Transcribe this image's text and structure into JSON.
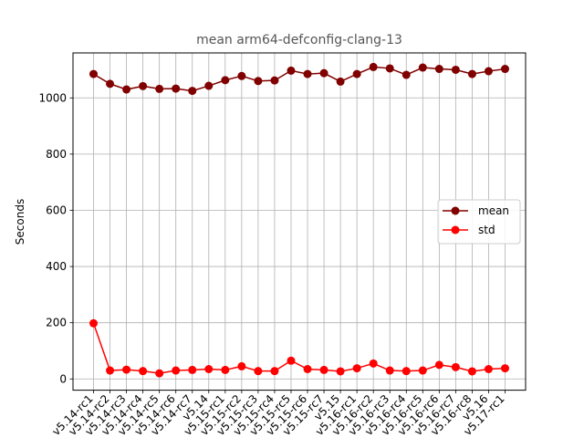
{
  "chart_data": {
    "type": "line",
    "title": "mean arm64-defconfig-clang-13",
    "xlabel": "",
    "ylabel": "Seconds",
    "ylim": [
      -40,
      1160
    ],
    "yticks": [
      0,
      200,
      400,
      600,
      800,
      1000
    ],
    "grid": true,
    "legend_position": "center-right",
    "categories": [
      "v5.14-rc1",
      "v5.14-rc2",
      "v5.14-rc3",
      "v5.14-rc4",
      "v5.14-rc5",
      "v5.14-rc6",
      "v5.14-rc7",
      "v5.14",
      "v5.15-rc1",
      "v5.15-rc2",
      "v5.15-rc3",
      "v5.15-rc4",
      "v5.15-rc5",
      "v5.15-rc6",
      "v5.15-rc7",
      "v5.15",
      "v5.16-rc1",
      "v5.16-rc2",
      "v5.16-rc3",
      "v5.16-rc4",
      "v5.16-rc5",
      "v5.16-rc6",
      "v5.16-rc7",
      "v5.16-rc8",
      "v5.16",
      "v5.17-rc1"
    ],
    "series": [
      {
        "name": "mean",
        "color": "#800000",
        "values": [
          1085,
          1050,
          1030,
          1042,
          1032,
          1033,
          1025,
          1043,
          1063,
          1078,
          1060,
          1062,
          1097,
          1085,
          1088,
          1058,
          1085,
          1110,
          1105,
          1082,
          1108,
          1103,
          1100,
          1085,
          1095,
          1103
        ]
      },
      {
        "name": "std",
        "color": "#ff0000",
        "values": [
          198,
          30,
          33,
          28,
          20,
          30,
          32,
          35,
          32,
          45,
          28,
          28,
          65,
          35,
          32,
          27,
          38,
          55,
          30,
          28,
          30,
          50,
          42,
          27,
          35,
          38
        ]
      }
    ]
  }
}
